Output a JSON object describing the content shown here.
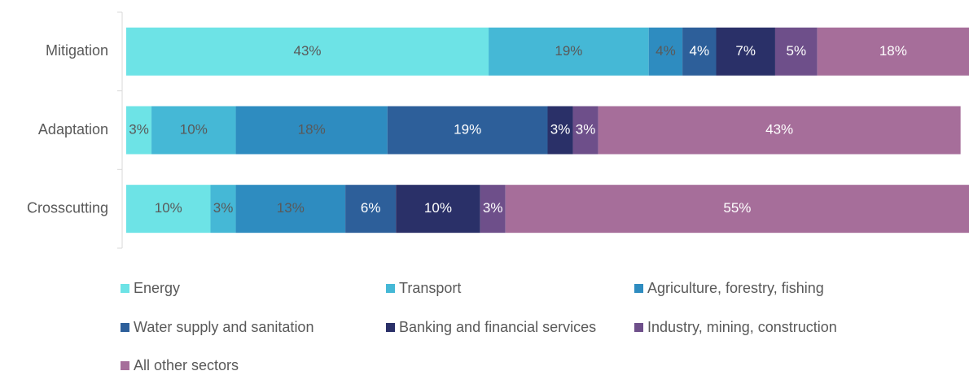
{
  "chart_data": {
    "type": "stacked_bar_horizontal",
    "categories": [
      "Mitigation",
      "Adaptation",
      "Crosscutting"
    ],
    "xlim": [
      0,
      100
    ],
    "series": [
      {
        "name": "Energy",
        "color": "#6de3e6",
        "label_color": "#595959",
        "values": [
          43,
          3,
          10
        ],
        "value_labels": [
          "43%",
          "3%",
          "10%"
        ]
      },
      {
        "name": "Transport",
        "color": "#45b8d6",
        "label_color": "#595959",
        "values": [
          19,
          10,
          3
        ],
        "value_labels": [
          "19%",
          "10%",
          "3%"
        ]
      },
      {
        "name": "Agriculture, forestry, fishing",
        "color": "#2e8cc0",
        "label_color": "#595959",
        "values": [
          4,
          18,
          13
        ],
        "value_labels": [
          "4%",
          "18%",
          "13%"
        ]
      },
      {
        "name": "Water supply and sanitation",
        "color": "#2d5f9a",
        "label_color": "#ffffff",
        "values": [
          4,
          19,
          6
        ],
        "value_labels": [
          "4%",
          "19%",
          "6%"
        ]
      },
      {
        "name": "Banking and financial services",
        "color": "#2a3068",
        "label_color": "#ffffff",
        "values": [
          7,
          3,
          10
        ],
        "value_labels": [
          "7%",
          "3%",
          "10%"
        ]
      },
      {
        "name": "Industry, mining, construction",
        "color": "#6e4f8a",
        "label_color": "#ffffff",
        "values": [
          5,
          3,
          3
        ],
        "value_labels": [
          "5%",
          "3%",
          "3%"
        ]
      },
      {
        "name": "All other sectors",
        "color": "#a66e9a",
        "label_color": "#ffffff",
        "values": [
          18,
          43,
          55
        ],
        "value_labels": [
          "18%",
          "43%",
          "55%"
        ]
      }
    ]
  }
}
